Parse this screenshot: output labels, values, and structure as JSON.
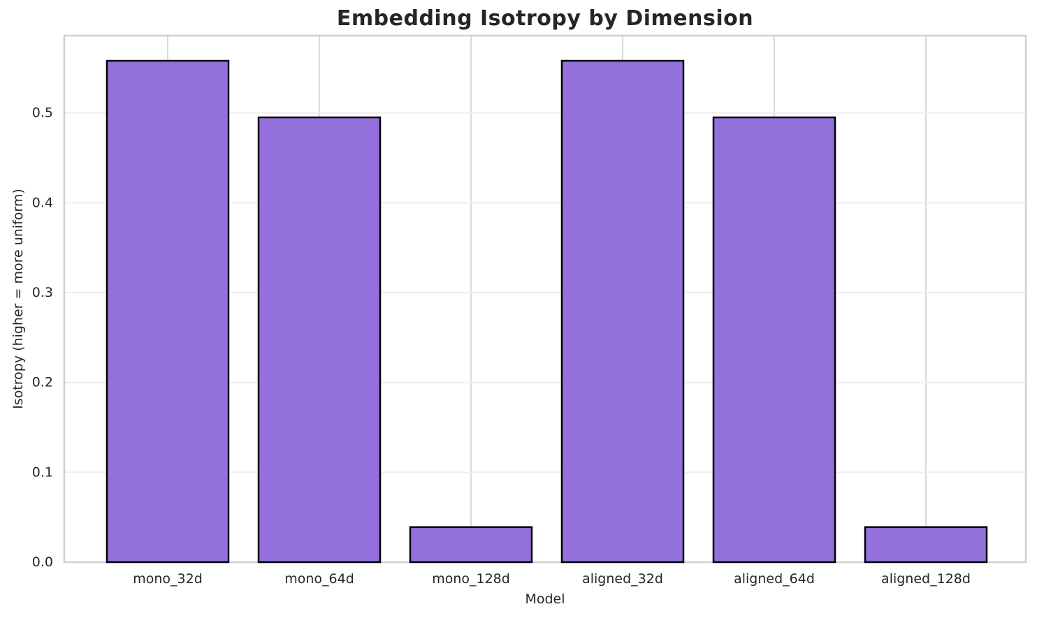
{
  "chart_data": {
    "type": "bar",
    "title": "Embedding Isotropy by Dimension",
    "xlabel": "Model",
    "ylabel": "Isotropy (higher = more uniform)",
    "categories": [
      "mono_32d",
      "mono_64d",
      "mono_128d",
      "aligned_32d",
      "aligned_64d",
      "aligned_128d"
    ],
    "values": [
      0.558,
      0.495,
      0.039,
      0.558,
      0.495,
      0.039
    ],
    "yticks": [
      "0.0",
      "0.1",
      "0.2",
      "0.3",
      "0.4",
      "0.5"
    ],
    "ylim": [
      0,
      0.586
    ],
    "grid": true,
    "legend": null,
    "bar_fill_color": "#9370DB",
    "bar_edge_color": "#000000",
    "text_color": "#262626",
    "h_grid_color": "#eeeeee",
    "v_grid_color": "#d9d9d9",
    "spine_color": "#d0d0d0"
  }
}
